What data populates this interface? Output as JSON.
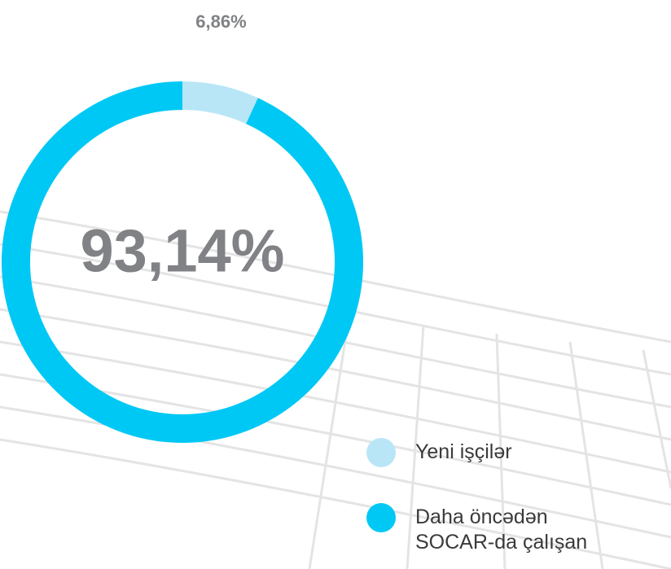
{
  "chart_data": {
    "type": "donut",
    "categories": [
      "Yeni işçilər",
      "Daha öncədən SOCAR-da çalışan"
    ],
    "values": [
      6.86,
      93.14
    ],
    "value_labels": [
      "6,86%",
      "93,14%"
    ],
    "colors": [
      "#b9e6f7",
      "#00c8f5"
    ]
  }
}
